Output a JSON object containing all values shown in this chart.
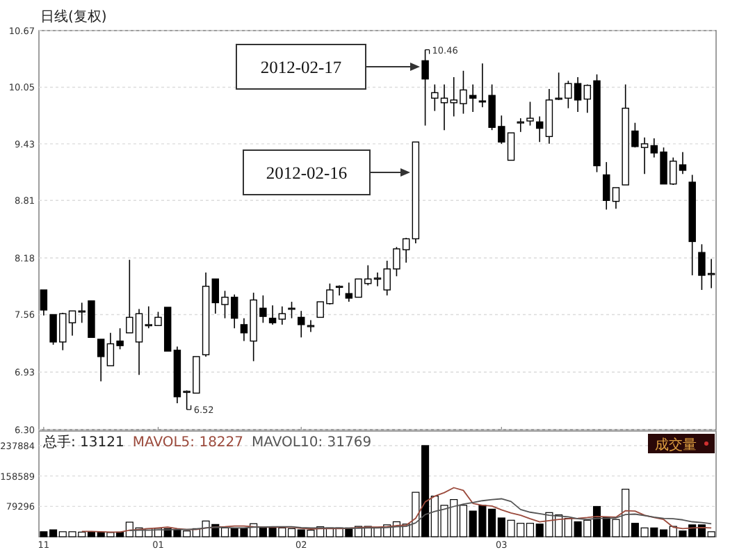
{
  "chart_data": [
    {
      "type": "candlestick",
      "title": "日线(复权)",
      "tick_labels": "y",
      "grid": "y",
      "categories": [
        "11",
        null,
        null,
        null,
        null,
        null,
        null,
        null,
        null,
        null,
        null,
        null,
        "01",
        null,
        null,
        null,
        null,
        null,
        null,
        null,
        null,
        null,
        null,
        null,
        null,
        null,
        null,
        "02",
        null,
        null,
        null,
        null,
        null,
        null,
        null,
        null,
        null,
        null,
        null,
        null,
        null,
        null,
        null,
        null,
        null,
        null,
        null,
        null,
        "03",
        null,
        null,
        null,
        null,
        null,
        null,
        null,
        null,
        null,
        null,
        null,
        null,
        null,
        null,
        null,
        null,
        null,
        null,
        null,
        null,
        null,
        null
      ],
      "ylim": [
        6.3,
        10.67
      ],
      "yticks": [
        {
          "value": 6.3,
          "label": "6.30"
        },
        6.93,
        7.56,
        8.18,
        8.81,
        9.43,
        10.05,
        10.67
      ],
      "annotations": [
        "10.46",
        "6.52",
        "2012-02-17",
        "2012-02-16"
      ],
      "ohlc": [
        [
          7.83,
          7.83,
          7.55,
          7.61
        ],
        [
          7.56,
          7.56,
          7.23,
          7.26
        ],
        [
          7.26,
          7.58,
          7.17,
          7.57
        ],
        [
          7.47,
          7.6,
          7.33,
          7.6
        ],
        [
          7.59,
          7.69,
          7.47,
          7.6
        ],
        [
          7.71,
          7.71,
          7.31,
          7.31
        ],
        [
          7.29,
          7.29,
          6.83,
          7.1
        ],
        [
          7.0,
          7.36,
          7.0,
          7.24
        ],
        [
          7.27,
          7.41,
          7.18,
          7.22
        ],
        [
          7.36,
          8.16,
          7.36,
          7.53
        ],
        [
          7.26,
          7.62,
          6.9,
          7.57
        ],
        [
          7.44,
          7.65,
          7.41,
          7.45
        ],
        [
          7.44,
          7.59,
          7.44,
          7.53
        ],
        [
          7.64,
          7.64,
          7.16,
          7.16
        ],
        [
          7.17,
          7.21,
          6.59,
          6.66
        ],
        [
          6.71,
          6.73,
          6.52,
          6.72
        ],
        [
          6.7,
          7.1,
          6.7,
          7.1
        ],
        [
          7.12,
          8.02,
          7.1,
          7.87
        ],
        [
          7.95,
          7.95,
          7.57,
          7.69
        ],
        [
          7.67,
          7.82,
          7.52,
          7.75
        ],
        [
          7.75,
          7.78,
          7.41,
          7.52
        ],
        [
          7.45,
          7.52,
          7.27,
          7.36
        ],
        [
          7.27,
          7.8,
          7.05,
          7.72
        ],
        [
          7.63,
          7.77,
          7.47,
          7.54
        ],
        [
          7.52,
          7.66,
          7.45,
          7.47
        ],
        [
          7.51,
          7.65,
          7.45,
          7.57
        ],
        [
          7.62,
          7.7,
          7.52,
          7.63
        ],
        [
          7.53,
          7.6,
          7.31,
          7.45
        ],
        [
          7.44,
          7.5,
          7.37,
          7.44
        ],
        [
          7.53,
          7.7,
          7.53,
          7.7
        ],
        [
          7.68,
          7.9,
          7.67,
          7.83
        ],
        [
          7.87,
          7.88,
          7.77,
          7.87
        ],
        [
          7.79,
          7.91,
          7.7,
          7.74
        ],
        [
          7.75,
          7.95,
          7.75,
          7.95
        ],
        [
          7.9,
          8.1,
          7.88,
          7.95
        ],
        [
          7.96,
          8.02,
          7.87,
          7.96
        ],
        [
          7.83,
          8.15,
          7.77,
          8.06
        ],
        [
          8.06,
          8.3,
          7.98,
          8.28
        ],
        [
          8.27,
          8.4,
          8.13,
          8.39
        ],
        [
          8.39,
          9.45,
          8.34,
          9.45
        ],
        [
          10.34,
          10.46,
          9.63,
          10.14
        ],
        [
          9.93,
          10.08,
          9.79,
          9.99
        ],
        [
          9.88,
          10.08,
          9.58,
          9.93
        ],
        [
          9.88,
          10.16,
          9.73,
          9.91
        ],
        [
          9.87,
          10.23,
          9.76,
          10.02
        ],
        [
          9.96,
          10.08,
          9.78,
          9.93
        ],
        [
          9.9,
          10.31,
          9.83,
          9.89
        ],
        [
          9.96,
          10.08,
          9.58,
          9.61
        ],
        [
          9.62,
          9.74,
          9.43,
          9.45
        ],
        [
          9.25,
          9.55,
          9.25,
          9.55
        ],
        [
          9.67,
          9.71,
          9.56,
          9.67
        ],
        [
          9.68,
          9.89,
          9.63,
          9.71
        ],
        [
          9.67,
          9.73,
          9.45,
          9.6
        ],
        [
          9.51,
          10.03,
          9.43,
          9.91
        ],
        [
          9.93,
          10.21,
          9.91,
          9.93
        ],
        [
          9.93,
          10.12,
          9.82,
          10.09
        ],
        [
          10.09,
          10.16,
          9.78,
          9.91
        ],
        [
          9.92,
          10.08,
          9.77,
          10.07
        ],
        [
          10.12,
          10.19,
          9.12,
          9.19
        ],
        [
          9.09,
          9.23,
          8.71,
          8.81
        ],
        [
          8.8,
          8.95,
          8.72,
          8.95
        ],
        [
          8.98,
          10.08,
          8.98,
          9.82
        ],
        [
          9.57,
          9.66,
          9.39,
          9.4
        ],
        [
          9.39,
          9.5,
          9.1,
          9.43
        ],
        [
          9.41,
          9.49,
          9.28,
          9.33
        ],
        [
          9.34,
          9.39,
          8.99,
          8.99
        ],
        [
          8.99,
          9.28,
          8.98,
          9.24
        ],
        [
          9.2,
          9.34,
          9.1,
          9.14
        ],
        [
          9.01,
          9.09,
          7.99,
          8.36
        ],
        [
          8.24,
          8.33,
          7.83,
          7.99
        ],
        [
          8.01,
          8.17,
          7.85,
          8.01
        ]
      ]
    },
    {
      "type": "bar",
      "grid": "y",
      "legend": "top left",
      "categories": [
        "11",
        null,
        null,
        null,
        null,
        null,
        null,
        null,
        null,
        null,
        null,
        null,
        "01",
        null,
        null,
        null,
        null,
        null,
        null,
        null,
        null,
        null,
        null,
        null,
        null,
        null,
        null,
        "02",
        null,
        null,
        null,
        null,
        null,
        null,
        null,
        null,
        null,
        null,
        null,
        null,
        null,
        null,
        null,
        null,
        null,
        null,
        null,
        null,
        "03",
        null,
        null,
        null,
        null,
        null,
        null,
        null,
        null,
        null,
        null,
        null,
        null,
        null,
        null,
        null,
        null,
        null,
        null,
        null,
        null,
        null,
        null
      ],
      "ylim": [
        0,
        276000
      ],
      "yticks": [
        79296,
        158589,
        237884
      ],
      "annotations": [
        "总手: 13121",
        "成交量"
      ],
      "series": [
        {
          "type": "bar",
          "colors": [
            "#000000",
            "#000000",
            "#ffffff",
            "#ffffff",
            "#ffffff",
            "#000000",
            "#000000",
            "#ffffff",
            "#000000",
            "#ffffff",
            "#ffffff",
            "#ffffff",
            "#ffffff",
            "#000000",
            "#000000",
            "#ffffff",
            "#ffffff",
            "#ffffff",
            "#000000",
            "#ffffff",
            "#000000",
            "#000000",
            "#ffffff",
            "#000000",
            "#000000",
            "#ffffff",
            "#ffffff",
            "#000000",
            "#ffffff",
            "#ffffff",
            "#ffffff",
            "#ffffff",
            "#000000",
            "#ffffff",
            "#ffffff",
            "#ffffff",
            "#ffffff",
            "#ffffff",
            "#ffffff",
            "#ffffff",
            "#000000",
            "#ffffff",
            "#ffffff",
            "#ffffff",
            "#ffffff",
            "#000000",
            "#000000",
            "#000000",
            "#000000",
            "#ffffff",
            "#ffffff",
            "#ffffff",
            "#000000",
            "#ffffff",
            "#ffffff",
            "#ffffff",
            "#000000",
            "#ffffff",
            "#000000",
            "#000000",
            "#ffffff",
            "#ffffff",
            "#000000",
            "#ffffff",
            "#000000",
            "#000000",
            "#ffffff",
            "#000000",
            "#000000",
            "#000000",
            "#ffffff"
          ],
          "values": [
            13000,
            18000,
            13000,
            13000,
            12000,
            12000,
            12000,
            11000,
            12000,
            38000,
            23000,
            21000,
            22000,
            21000,
            17000,
            15000,
            21000,
            41000,
            32000,
            23000,
            21000,
            21000,
            34000,
            24000,
            23000,
            23000,
            21000,
            18000,
            17000,
            26000,
            23000,
            23000,
            23000,
            27000,
            27000,
            23000,
            31000,
            39000,
            33000,
            116000,
            238000,
            106000,
            82000,
            97000,
            82000,
            67000,
            82000,
            72000,
            49000,
            43000,
            35000,
            35000,
            33000,
            63000,
            57000,
            48000,
            39000,
            43000,
            79000,
            51000,
            45000,
            124000,
            35000,
            23000,
            23000,
            18000,
            27000,
            15000,
            31000,
            31000,
            13000
          ]
        },
        {
          "type": "line",
          "name": "MAVOL5: 18227",
          "color": "#9b4a3c",
          "values": [
            null,
            null,
            null,
            null,
            14000,
            14000,
            13000,
            12000,
            12000,
            17000,
            19000,
            21000,
            23000,
            25000,
            21000,
            19000,
            19000,
            23000,
            25000,
            26000,
            28000,
            28000,
            26000,
            25000,
            25000,
            25000,
            25000,
            22000,
            20000,
            21000,
            21000,
            21000,
            22000,
            24000,
            25000,
            25000,
            26000,
            29000,
            30000,
            48000,
            91000,
            106000,
            115000,
            128000,
            121000,
            87000,
            82000,
            80000,
            70000,
            62000,
            56000,
            47000,
            39000,
            42000,
            45000,
            47000,
            48000,
            50000,
            53000,
            52000,
            51000,
            68000,
            67000,
            56000,
            50000,
            45000,
            25000,
            21000,
            23000,
            24000,
            23000
          ]
        },
        {
          "type": "line",
          "name": "MAVOL10: 31769",
          "color": "#555555",
          "values": [
            null,
            null,
            null,
            null,
            null,
            null,
            null,
            null,
            null,
            16000,
            17000,
            17000,
            18000,
            18000,
            19000,
            19000,
            20000,
            23000,
            25000,
            24000,
            23000,
            23000,
            25000,
            25000,
            26000,
            26000,
            26000,
            24000,
            23000,
            23000,
            23000,
            23000,
            22000,
            22000,
            23000,
            23000,
            24000,
            26000,
            27000,
            36000,
            58000,
            66000,
            72000,
            79000,
            85000,
            89000,
            94000,
            97000,
            99000,
            92000,
            71000,
            64000,
            60000,
            56000,
            54000,
            52000,
            47000,
            45000,
            48000,
            48000,
            49000,
            58000,
            59000,
            55000,
            51000,
            48000,
            47000,
            44000,
            39000,
            37000,
            34000
          ]
        }
      ]
    }
  ]
}
